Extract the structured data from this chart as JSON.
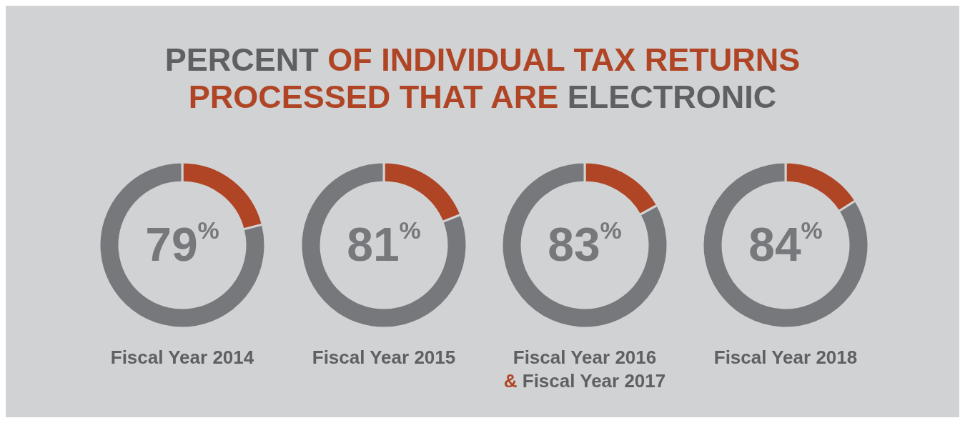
{
  "chart_data": [
    {
      "type": "donut",
      "title": "PERCENT OF INDIVIDUAL TAX RETURNS PROCESSED THAT ARE ELECTRONIC",
      "xlabel": "Fiscal Year 2014",
      "categories": [
        null,
        null
      ],
      "values": [
        21,
        79
      ],
      "colors": [
        "#b04525",
        "#77787b"
      ],
      "value_labels": [
        null,
        "79$^{%}$"
      ]
    },
    {
      "type": "donut",
      "xlabel": "Fiscal Year 2015",
      "categories": [
        null,
        null
      ],
      "values": [
        19,
        81
      ],
      "colors": [
        "#b04525",
        "#77787b"
      ],
      "value_labels": [
        null,
        "81$^{%}$"
      ]
    },
    {
      "type": "donut",
      "xlabel": "Fiscal Year 2016\n& Fiscal Year 2017",
      "categories": [
        null,
        null
      ],
      "values": [
        17,
        83
      ],
      "colors": [
        "#b04525",
        "#77787b"
      ],
      "value_labels": [
        null,
        "83$^{%}$"
      ]
    },
    {
      "type": "donut",
      "xlabel": "Fiscal Year 2018",
      "categories": [
        null,
        null
      ],
      "values": [
        16,
        84
      ],
      "colors": [
        "#b04525",
        "#77787b"
      ],
      "value_labels": [
        null,
        "84$^{%}$"
      ]
    }
  ]
}
